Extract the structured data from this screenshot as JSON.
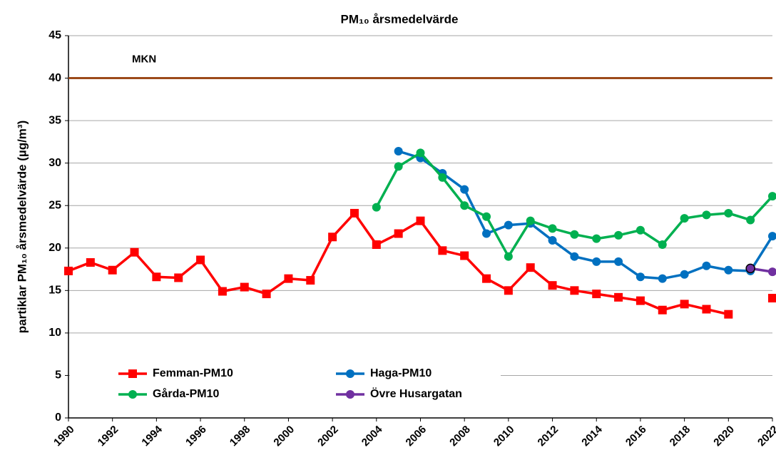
{
  "chart_data": {
    "type": "line",
    "title": "PM₁₀ årsmedelvärde",
    "y_label": "partiklar PM₁₀ årsmedelvärde (µg/m³)",
    "x": [
      1990,
      1991,
      1992,
      1993,
      1994,
      1995,
      1996,
      1997,
      1998,
      1999,
      2000,
      2001,
      2002,
      2003,
      2004,
      2005,
      2006,
      2007,
      2008,
      2009,
      2010,
      2011,
      2012,
      2013,
      2014,
      2015,
      2016,
      2017,
      2018,
      2019,
      2020,
      2021,
      2022
    ],
    "xlim": [
      1990,
      2022
    ],
    "xticks": [
      1990,
      1992,
      1994,
      1996,
      1998,
      2000,
      2002,
      2004,
      2006,
      2008,
      2010,
      2012,
      2014,
      2016,
      2018,
      2020,
      2022
    ],
    "ylim": [
      0,
      45
    ],
    "yticks": [
      0,
      5,
      10,
      15,
      20,
      25,
      30,
      35,
      40,
      45
    ],
    "grid": true,
    "legend": "lower left",
    "reference_line": {
      "label": "MKN",
      "value": 40,
      "color": "#9c4a1a"
    },
    "series": [
      {
        "name": "Femman-PM10",
        "color": "#ff0000",
        "marker": "square",
        "values": [
          17.3,
          18.3,
          17.4,
          19.5,
          16.6,
          16.5,
          18.6,
          14.9,
          15.4,
          14.6,
          16.4,
          16.2,
          21.3,
          24.1,
          20.4,
          21.7,
          23.2,
          19.7,
          19.1,
          16.4,
          15.0,
          17.7,
          15.6,
          15.0,
          14.6,
          14.2,
          13.8,
          12.7,
          13.4,
          12.8,
          12.2,
          null,
          14.1
        ]
      },
      {
        "name": "Haga-PM10",
        "color": "#0070c0",
        "marker": "circle",
        "values": [
          null,
          null,
          null,
          null,
          null,
          null,
          null,
          null,
          null,
          null,
          null,
          null,
          null,
          null,
          null,
          31.4,
          30.6,
          28.8,
          26.9,
          21.7,
          22.7,
          22.9,
          20.9,
          19.0,
          18.4,
          18.4,
          16.6,
          16.4,
          16.9,
          17.9,
          17.4,
          17.3,
          21.4
        ]
      },
      {
        "name": "Gårda-PM10",
        "color": "#00b050",
        "marker": "circle",
        "values": [
          null,
          null,
          null,
          null,
          null,
          null,
          null,
          null,
          null,
          null,
          null,
          null,
          null,
          null,
          24.8,
          29.6,
          31.2,
          28.3,
          25.0,
          23.7,
          19.0,
          23.2,
          22.3,
          21.6,
          21.1,
          21.5,
          22.1,
          20.4,
          23.5,
          23.9,
          24.1,
          23.3,
          26.1
        ]
      },
      {
        "name": "Övre Husargatan",
        "color": "#7030a0",
        "marker": "circle",
        "values": [
          null,
          null,
          null,
          null,
          null,
          null,
          null,
          null,
          null,
          null,
          null,
          null,
          null,
          null,
          null,
          null,
          null,
          null,
          null,
          null,
          null,
          null,
          null,
          null,
          null,
          null,
          null,
          null,
          null,
          null,
          null,
          17.6,
          17.2
        ]
      }
    ]
  }
}
